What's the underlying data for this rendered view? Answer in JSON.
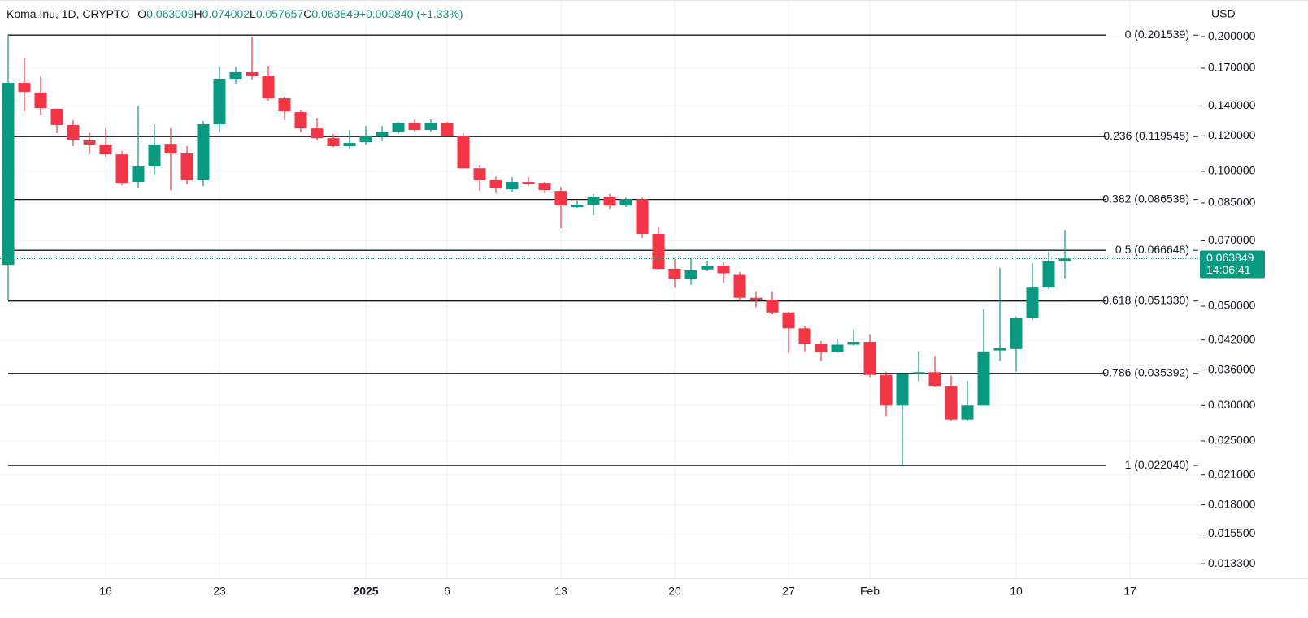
{
  "chart_data": {
    "type": "candlestick",
    "title": "Koma Inu, 1D, CRYPTO",
    "ohlc_labels": [
      "O",
      "H",
      "L",
      "C"
    ],
    "change": {
      "value": 0.00084,
      "label": "+0.000840"
    },
    "change_percent": {
      "value": 1.33,
      "label": "(+1.33%)"
    },
    "currency": "USD",
    "countdown": "14:06:41",
    "up_color": "#089981",
    "down_color": "#f23645",
    "log_scale": true,
    "grid": true,
    "categories": [
      null,
      null,
      null,
      null,
      null,
      null,
      "16",
      null,
      null,
      null,
      null,
      null,
      null,
      "23",
      null,
      null,
      null,
      null,
      null,
      null,
      null,
      null,
      "2025",
      null,
      null,
      null,
      null,
      "6",
      null,
      null,
      null,
      null,
      null,
      null,
      "13",
      null,
      null,
      null,
      null,
      null,
      null,
      "20",
      null,
      null,
      null,
      null,
      null,
      null,
      "27",
      null,
      null,
      null,
      null,
      "Feb",
      null,
      null,
      null,
      null,
      null,
      null,
      null,
      null,
      "10",
      null,
      null,
      null,
      null,
      null,
      null,
      "17",
      null,
      null,
      null,
      null
    ],
    "open": [
      0.0618,
      0.1576,
      0.15,
      0.138,
      0.1269,
      0.1172,
      0.1148,
      0.1091,
      0.0947,
      0.1025,
      0.1152,
      0.1096,
      0.0955,
      0.1274,
      0.161,
      0.1665,
      0.1636,
      0.1456,
      0.1356,
      0.1247,
      0.1186,
      0.1138,
      0.1162,
      0.1196,
      0.1226,
      0.128,
      0.1237,
      0.128,
      0.1201,
      0.1016,
      0.0955,
      0.0912,
      0.0947,
      0.0943,
      0.0904,
      0.0832,
      0.0842,
      0.0878,
      0.0839,
      0.0867,
      0.0725,
      0.0606,
      0.0575,
      0.0604,
      0.0616,
      0.0587,
      0.0522,
      0.0517,
      0.0484,
      0.0446,
      0.0412,
      0.0395,
      0.041,
      0.0416,
      0.0351,
      0.03,
      0.0354,
      0.0356,
      0.0332,
      0.0279,
      0.03,
      0.0398,
      0.0401,
      0.047,
      0.055,
      0.063009,
      null,
      null,
      null,
      null,
      null,
      null,
      null,
      null
    ],
    "high": [
      0.2015,
      0.1787,
      0.1628,
      0.138,
      0.1301,
      0.1221,
      0.1247,
      0.111,
      0.1402,
      0.1274,
      0.1247,
      0.1138,
      0.1296,
      0.1713,
      0.1713,
      0.2,
      0.172,
      0.1468,
      0.1368,
      0.1317,
      0.1211,
      0.1237,
      0.1263,
      0.1263,
      0.129,
      0.1307,
      0.1307,
      0.129,
      0.1216,
      0.1034,
      0.0975,
      0.0971,
      0.0971,
      0.0947,
      0.0923,
      0.0859,
      0.089,
      0.089,
      0.0874,
      0.0874,
      0.075,
      0.0639,
      0.0639,
      0.0631,
      0.0626,
      0.0596,
      0.054,
      0.054,
      0.0486,
      0.0451,
      0.0418,
      0.0423,
      0.0443,
      0.0433,
      0.0357,
      0.0354,
      0.0396,
      0.0387,
      0.035,
      0.034,
      0.0492,
      0.0609,
      0.0474,
      0.0623,
      0.0661,
      0.074002,
      null,
      null,
      null,
      null,
      null,
      null,
      null,
      null
    ],
    "low": [
      0.0515,
      0.1362,
      0.1334,
      0.1216,
      0.1138,
      0.1091,
      0.1078,
      0.0931,
      0.0916,
      0.0983,
      0.0908,
      0.0935,
      0.0927,
      0.1226,
      0.1563,
      0.1605,
      0.144,
      0.1301,
      0.1221,
      0.1172,
      0.1133,
      0.1119,
      0.1148,
      0.1167,
      0.1211,
      0.1226,
      0.1226,
      0.1196,
      0.1016,
      0.0904,
      0.0893,
      0.09,
      0.0927,
      0.0893,
      0.0746,
      0.0829,
      0.0798,
      0.0826,
      0.0832,
      0.071,
      0.0604,
      0.055,
      0.0558,
      0.0599,
      0.0563,
      0.0517,
      0.0497,
      0.0479,
      0.0393,
      0.0396,
      0.0377,
      0.0393,
      0.0408,
      0.0347,
      0.0284,
      0.02204,
      0.034,
      0.033,
      0.0277,
      0.0277,
      0.03,
      0.0377,
      0.0357,
      0.0466,
      0.0546,
      0.057657,
      null,
      null,
      null,
      null,
      null,
      null,
      null,
      null
    ],
    "close": [
      0.1576,
      0.1506,
      0.1385,
      0.1269,
      0.1176,
      0.1148,
      0.1091,
      0.0943,
      0.1025,
      0.1148,
      0.1096,
      0.0955,
      0.1274,
      0.161,
      0.1665,
      0.1636,
      0.1456,
      0.1362,
      0.1247,
      0.1186,
      0.1138,
      0.1157,
      0.1201,
      0.1226,
      0.1285,
      0.1237,
      0.1285,
      0.1201,
      0.1016,
      0.0955,
      0.0916,
      0.0947,
      0.0939,
      0.0908,
      0.0839,
      0.0842,
      0.0878,
      0.0839,
      0.0867,
      0.0725,
      0.0606,
      0.0575,
      0.0601,
      0.0616,
      0.0592,
      0.0522,
      0.0517,
      0.0484,
      0.0446,
      0.0412,
      0.0395,
      0.041,
      0.0416,
      0.0351,
      0.03,
      0.0353,
      0.0356,
      0.0332,
      0.0279,
      0.03,
      0.0396,
      0.0403,
      0.047,
      0.055,
      0.063,
      0.063849,
      null,
      null,
      null,
      null,
      null,
      null,
      null,
      null
    ],
    "fib_levels": [
      {
        "value": 0.201539,
        "label": "0 (0.201539)"
      },
      {
        "value": 0.119545,
        "label": "0.236 (0.119545)"
      },
      {
        "value": 0.086538,
        "label": "0.382 (0.086538)"
      },
      {
        "value": 0.066648,
        "label": "0.5 (0.066648)"
      },
      {
        "value": 0.05133,
        "label": "0.618 (0.051330)"
      },
      {
        "value": 0.035392,
        "label": "0.786 (0.035392)"
      },
      {
        "value": 0.02204,
        "label": "1 (0.022040)"
      }
    ],
    "ylim": [
      0.01234,
      0.2414
    ],
    "yticks": [
      {
        "value": 0.2,
        "label": "0.200000"
      },
      {
        "value": 0.17,
        "label": "0.170000"
      },
      {
        "value": 0.14,
        "label": "0.140000"
      },
      {
        "value": 0.12,
        "label": "0.120000"
      },
      {
        "value": 0.1,
        "label": "0.100000"
      },
      {
        "value": 0.085,
        "label": "0.085000"
      },
      {
        "value": 0.07,
        "label": "0.070000"
      },
      {
        "value": 0.05,
        "label": "0.050000"
      },
      {
        "value": 0.042,
        "label": "0.042000"
      },
      {
        "value": 0.036,
        "label": "0.036000"
      },
      {
        "value": 0.03,
        "label": "0.030000"
      },
      {
        "value": 0.025,
        "label": "0.025000"
      },
      {
        "value": 0.021,
        "label": "0.021000"
      },
      {
        "value": 0.018,
        "label": "0.018000"
      },
      {
        "value": 0.0155,
        "label": "0.015500"
      },
      {
        "value": 0.0133,
        "label": "0.013300"
      }
    ]
  }
}
